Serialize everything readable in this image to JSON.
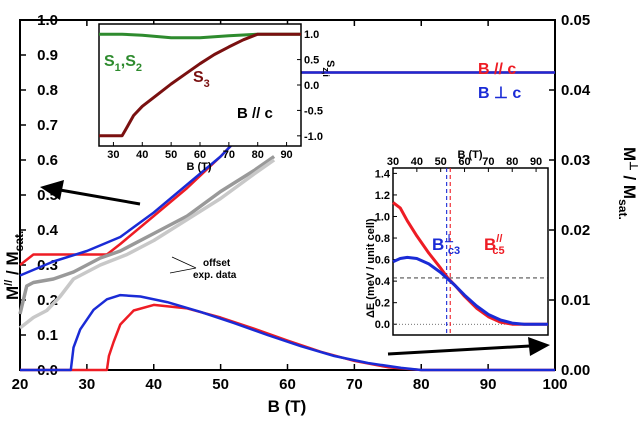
{
  "colors": {
    "red": "#ee1c24",
    "blue": "#1a2bd6",
    "purple": "#7b2a8c",
    "green": "#2e8b2e",
    "brown": "#7a1010",
    "gray": "#999999",
    "lightgray": "#c8c8c8"
  },
  "chart_data": [
    {
      "id": "main",
      "type": "line",
      "xlabel": "B (T)",
      "ylabel_left_main": "M",
      "ylabel_left_sup": "//",
      "ylabel_left_tail": " / M",
      "ylabel_left_sub": "sat.",
      "ylabel_right_main": "M",
      "ylabel_right_sup": "⊥",
      "ylabel_right_tail": " / M",
      "ylabel_right_sub": "sat.",
      "xlim": [
        20,
        100
      ],
      "ylim_left": [
        0,
        1.0
      ],
      "ylim_right": [
        0,
        0.05
      ],
      "xticks": [
        "20",
        "30",
        "40",
        "50",
        "60",
        "70",
        "80",
        "90",
        "100"
      ],
      "yticks_left": [
        "0.0",
        "0.1",
        "0.2",
        "0.3",
        "0.4",
        "0.5",
        "0.6",
        "0.7",
        "0.8",
        "0.9",
        "1.0"
      ],
      "yticks_right": [
        "0.00",
        "0.01",
        "0.02",
        "0.03",
        "0.04",
        "0.05"
      ],
      "legend": [
        {
          "label": "B // c",
          "color": "#ee1c24"
        },
        {
          "label": "B ⊥ c",
          "color": "#1a2bd6"
        }
      ],
      "annotation": [
        "offset",
        "exp. data"
      ],
      "series": [
        {
          "name": "B // c",
          "axis": "left",
          "color": "#ee1c24",
          "x": [
            20,
            22,
            33,
            35,
            40,
            45,
            50,
            55,
            60,
            62,
            70,
            80,
            90,
            100
          ],
          "y": [
            0.3,
            0.33,
            0.33,
            0.36,
            0.44,
            0.52,
            0.61,
            0.71,
            0.81,
            0.85,
            0.85,
            0.85,
            0.85,
            0.85
          ]
        },
        {
          "name": "B ⊥ c",
          "axis": "left",
          "color": "#1a2bd6",
          "x": [
            20,
            25,
            30,
            35,
            40,
            45,
            50,
            55,
            60,
            62,
            70,
            80,
            90,
            100
          ],
          "y": [
            0.27,
            0.31,
            0.34,
            0.38,
            0.45,
            0.53,
            0.61,
            0.71,
            0.81,
            0.85,
            0.85,
            0.85,
            0.85,
            0.85
          ]
        },
        {
          "name": "B // c",
          "axis": "right",
          "color": "#ee1c24",
          "x": [
            20,
            33,
            33.3,
            34,
            35,
            37,
            40,
            45,
            50,
            55,
            60,
            65,
            70,
            75,
            80,
            90,
            100
          ],
          "y": [
            0,
            0,
            0.002,
            0.004,
            0.0065,
            0.0085,
            0.0093,
            0.0088,
            0.0075,
            0.0059,
            0.0042,
            0.0026,
            0.0013,
            0.0004,
            0,
            0,
            0
          ]
        },
        {
          "name": "B ⊥ c",
          "axis": "right",
          "color": "#1a2bd6",
          "x": [
            20,
            27.6,
            28,
            29,
            31,
            33,
            35,
            38,
            42,
            47,
            52,
            57,
            62,
            67,
            72,
            77,
            80,
            90,
            100
          ],
          "y": [
            0,
            0,
            0.0032,
            0.0058,
            0.0086,
            0.0101,
            0.0107,
            0.0105,
            0.0097,
            0.0083,
            0.0067,
            0.005,
            0.0034,
            0.002,
            0.001,
            0.0003,
            0,
            0,
            0
          ]
        },
        {
          "name": "exp. data (dark)",
          "axis": "left",
          "color": "#999999",
          "x": [
            20,
            21,
            22,
            25,
            28,
            30,
            32,
            35,
            40,
            45,
            50,
            55,
            58
          ],
          "y": [
            0.16,
            0.24,
            0.25,
            0.26,
            0.28,
            0.3,
            0.32,
            0.34,
            0.39,
            0.44,
            0.51,
            0.57,
            0.61
          ]
        },
        {
          "name": "exp. data (light)",
          "axis": "left",
          "color": "#c8c8c8",
          "x": [
            20,
            22,
            24,
            26,
            28,
            32,
            36,
            40,
            45,
            50,
            55,
            58
          ],
          "y": [
            0.12,
            0.15,
            0.17,
            0.21,
            0.26,
            0.3,
            0.33,
            0.37,
            0.43,
            0.49,
            0.56,
            0.6
          ]
        }
      ]
    },
    {
      "id": "inset_top",
      "type": "line",
      "xlabel": "B (T)",
      "ylabel": "S",
      "ylabel_sub": "z,i",
      "xlim": [
        25,
        95
      ],
      "ylim": [
        -1.2,
        1.2
      ],
      "xticks": [
        "30",
        "40",
        "50",
        "60",
        "70",
        "80",
        "90"
      ],
      "yticks": [
        "-1.0",
        "-0.5",
        "0.0",
        "0.5",
        "1.0"
      ],
      "labels": {
        "s12_main": "S",
        "s12_sub1": "1",
        "s12_mid": ",S",
        "s12_sub2": "2",
        "s3_main": "S",
        "s3_sub": "3",
        "field": "B // c"
      },
      "series": [
        {
          "name": "S1,S2",
          "color": "#2e8b2e",
          "x": [
            25,
            33,
            40,
            50,
            60,
            70,
            80,
            95
          ],
          "y": [
            1.0,
            1.0,
            0.98,
            0.93,
            0.93,
            0.97,
            1.0,
            1.0
          ]
        },
        {
          "name": "S3",
          "color": "#7a1010",
          "x": [
            25,
            33,
            34,
            37,
            40,
            45,
            50,
            55,
            60,
            65,
            70,
            75,
            80,
            95
          ],
          "y": [
            -1.0,
            -1.0,
            -0.9,
            -0.6,
            -0.42,
            -0.2,
            0.02,
            0.22,
            0.42,
            0.6,
            0.75,
            0.89,
            1.0,
            1.0
          ]
        }
      ]
    },
    {
      "id": "inset_right",
      "type": "line",
      "xlabel": "B (T)",
      "ylabel": "ΔE (meV / unit cell)",
      "xlim": [
        30,
        95
      ],
      "ylim": [
        -0.1,
        1.45
      ],
      "xticks": [
        "30",
        "40",
        "50",
        "60",
        "70",
        "80",
        "90"
      ],
      "yticks": [
        "0.0",
        "0.2",
        "0.4",
        "0.6",
        "0.8",
        "1.0",
        "1.2",
        "1.4"
      ],
      "labels": {
        "bc3_main": "B",
        "bc3_sup": "⊥",
        "bc3_sub": "c3",
        "bc5_main": "B",
        "bc5_sup": "//",
        "bc5_sub": "c5"
      },
      "vlines": [
        {
          "x": 52.5,
          "color": "#1a2bd6"
        },
        {
          "x": 54.0,
          "color": "#ee1c24"
        }
      ],
      "hline": 0.43,
      "series": [
        {
          "name": "B // c",
          "color": "#ee1c24",
          "x": [
            30,
            33,
            36,
            40,
            45,
            50,
            53,
            56,
            60,
            65,
            70,
            75,
            80,
            85,
            88,
            95
          ],
          "y": [
            1.13,
            1.08,
            0.96,
            0.82,
            0.66,
            0.52,
            0.43,
            0.36,
            0.26,
            0.15,
            0.07,
            0.02,
            0.0,
            0.0,
            0.0,
            0.0
          ]
        },
        {
          "name": "B ⊥ c",
          "color": "#1a2bd6",
          "x": [
            30,
            33,
            36,
            40,
            45,
            50,
            53,
            56,
            60,
            65,
            70,
            75,
            80,
            85,
            88,
            95
          ],
          "y": [
            0.58,
            0.61,
            0.62,
            0.61,
            0.56,
            0.48,
            0.42,
            0.36,
            0.27,
            0.17,
            0.09,
            0.04,
            0.01,
            0.0,
            0.0,
            0.0
          ]
        }
      ]
    }
  ]
}
